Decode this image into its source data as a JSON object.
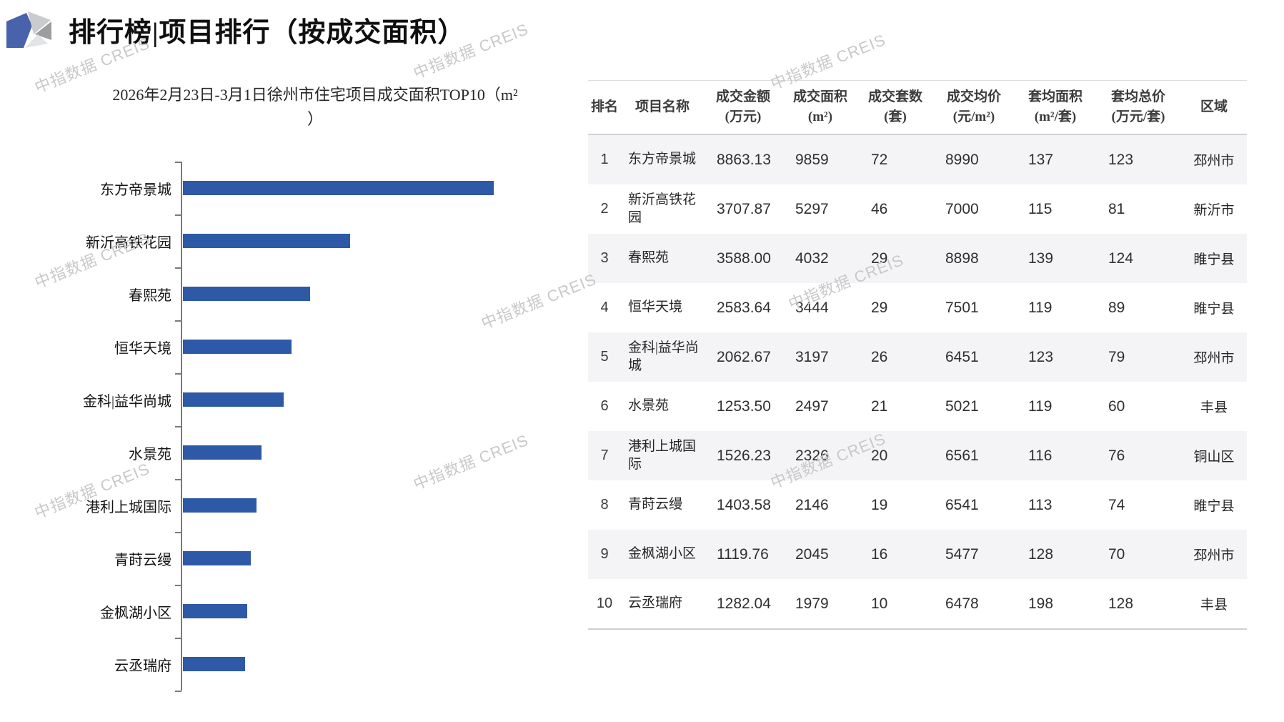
{
  "page": {
    "title": "排行榜|项目排行（按成交面积）",
    "watermark_text": "中指数据 CREIS"
  },
  "chart_data": {
    "type": "bar",
    "orientation": "horizontal",
    "title": "2026年2月23日-3月1日徐州市住宅项目成交面积TOP10（m²）",
    "title_lines": [
      "2026年2月23日-3月1日徐州市住宅项目成交面积TOP10（m²",
      "）"
    ],
    "categories": [
      "东方帝景城",
      "新沂高铁花园",
      "春熙苑",
      "恒华天境",
      "金科|益华尚城",
      "水景苑",
      "港利上城国际",
      "青莳云缦",
      "金枫湖小区",
      "云丞瑞府"
    ],
    "values": [
      9859,
      5297,
      4032,
      3444,
      3197,
      2497,
      2326,
      2146,
      2045,
      1979
    ],
    "unit": "m²",
    "xlabel": "",
    "ylabel": "",
    "xlim": [
      0,
      9859
    ],
    "grid": false,
    "legend": false,
    "value_labels_visible": false,
    "value_axis_visible": false,
    "bar_color": "#2E59A7"
  },
  "table": {
    "headers": [
      {
        "line1": "排名",
        "line2": ""
      },
      {
        "line1": "项目名称",
        "line2": ""
      },
      {
        "line1": "成交金额",
        "line2": "(万元)"
      },
      {
        "line1": "成交面积",
        "line2": "(m²)"
      },
      {
        "line1": "成交套数",
        "line2": "(套)"
      },
      {
        "line1": "成交均价",
        "line2": "(元/m²)"
      },
      {
        "line1": "套均面积",
        "line2": "(m²/套)"
      },
      {
        "line1": "套均总价",
        "line2": "(万元/套)"
      },
      {
        "line1": "区域",
        "line2": ""
      }
    ],
    "rows": [
      [
        "1",
        "东方帝景城",
        "8863.13",
        "9859",
        "72",
        "8990",
        "137",
        "123",
        "邳州市"
      ],
      [
        "2",
        "新沂高铁花园",
        "3707.87",
        "5297",
        "46",
        "7000",
        "115",
        "81",
        "新沂市"
      ],
      [
        "3",
        "春熙苑",
        "3588.00",
        "4032",
        "29",
        "8898",
        "139",
        "124",
        "睢宁县"
      ],
      [
        "4",
        "恒华天境",
        "2583.64",
        "3444",
        "29",
        "7501",
        "119",
        "89",
        "睢宁县"
      ],
      [
        "5",
        "金科|益华尚城",
        "2062.67",
        "3197",
        "26",
        "6451",
        "123",
        "79",
        "邳州市"
      ],
      [
        "6",
        "水景苑",
        "1253.50",
        "2497",
        "21",
        "5021",
        "119",
        "60",
        "丰县"
      ],
      [
        "7",
        "港利上城国际",
        "1526.23",
        "2326",
        "20",
        "6561",
        "116",
        "76",
        "铜山区"
      ],
      [
        "8",
        "青莳云缦",
        "1403.58",
        "2146",
        "19",
        "6541",
        "113",
        "74",
        "睢宁县"
      ],
      [
        "9",
        "金枫湖小区",
        "1119.76",
        "2045",
        "16",
        "5477",
        "128",
        "70",
        "邳州市"
      ],
      [
        "10",
        "云丞瑞府",
        "1282.04",
        "1979",
        "10",
        "6478",
        "198",
        "128",
        "丰县"
      ]
    ]
  },
  "colors": {
    "bar_blue": "#2E59A7",
    "logo_blue": "#4862AB",
    "row_stripe": "#F4F4F6",
    "watermark_gray": "#C9C9CC"
  }
}
